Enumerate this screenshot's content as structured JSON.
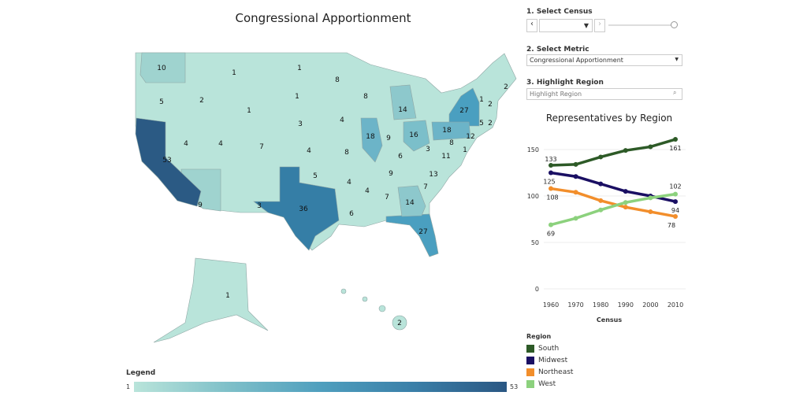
{
  "title": "Congressional Apportionment",
  "controls": {
    "census_label": "1. Select Census",
    "census_value": "",
    "metric_label": "2. Select Metric",
    "metric_value": "Congressional Apportionment",
    "highlight_label": "3. Highlight Region",
    "highlight_placeholder": "Highlight Region"
  },
  "map": {
    "states": [
      {
        "s": "WA",
        "v": "10"
      },
      {
        "s": "OR",
        "v": "5"
      },
      {
        "s": "CA",
        "v": "53"
      },
      {
        "s": "NV",
        "v": "4"
      },
      {
        "s": "ID",
        "v": "2"
      },
      {
        "s": "MT",
        "v": "1"
      },
      {
        "s": "WY",
        "v": "1"
      },
      {
        "s": "UT",
        "v": "4"
      },
      {
        "s": "AZ",
        "v": "9"
      },
      {
        "s": "CO",
        "v": "7"
      },
      {
        "s": "NM",
        "v": "3"
      },
      {
        "s": "ND",
        "v": "1"
      },
      {
        "s": "SD",
        "v": "1"
      },
      {
        "s": "NE",
        "v": "3"
      },
      {
        "s": "KS",
        "v": "4"
      },
      {
        "s": "OK",
        "v": "5"
      },
      {
        "s": "TX",
        "v": "36"
      },
      {
        "s": "MN",
        "v": "8"
      },
      {
        "s": "IA",
        "v": "4"
      },
      {
        "s": "MO",
        "v": "8"
      },
      {
        "s": "AR",
        "v": "4"
      },
      {
        "s": "LA",
        "v": "6"
      },
      {
        "s": "WI",
        "v": "8"
      },
      {
        "s": "IL",
        "v": "18"
      },
      {
        "s": "MI",
        "v": "14"
      },
      {
        "s": "IN",
        "v": "9"
      },
      {
        "s": "OH",
        "v": "16"
      },
      {
        "s": "KY",
        "v": "6"
      },
      {
        "s": "TN",
        "v": "9"
      },
      {
        "s": "MS",
        "v": "4"
      },
      {
        "s": "AL",
        "v": "7"
      },
      {
        "s": "GA",
        "v": "14"
      },
      {
        "s": "FL",
        "v": "27"
      },
      {
        "s": "SC",
        "v": "7"
      },
      {
        "s": "NC",
        "v": "13"
      },
      {
        "s": "VA",
        "v": "11"
      },
      {
        "s": "WV",
        "v": "3"
      },
      {
        "s": "PA",
        "v": "18"
      },
      {
        "s": "NY",
        "v": "27"
      },
      {
        "s": "VT",
        "v": "1"
      },
      {
        "s": "NH",
        "v": "2"
      },
      {
        "s": "ME",
        "v": "2"
      },
      {
        "s": "CT",
        "v": "5"
      },
      {
        "s": "RI",
        "v": "2"
      },
      {
        "s": "NJ",
        "v": "12"
      },
      {
        "s": "MD",
        "v": "8"
      },
      {
        "s": "DE",
        "v": "1"
      },
      {
        "s": "AK",
        "v": "1"
      },
      {
        "s": "HI",
        "v": "2"
      }
    ]
  },
  "legend": {
    "title": "Legend",
    "min": "1",
    "max": "53",
    "color_min": "#b9e4da",
    "color_max": "#2a5783"
  },
  "chart_data": {
    "type": "line",
    "title": "Representatives by Region",
    "xlabel": "Census",
    "ylabel": "",
    "x": [
      1960,
      1970,
      1980,
      1990,
      2000,
      2010
    ],
    "x_tick_labels": [
      "1960",
      "1970",
      "1980",
      "1990",
      "2000",
      "2010"
    ],
    "y_ticks": [
      "0",
      "50",
      "100",
      "150"
    ],
    "ylim": [
      0,
      165
    ],
    "grid": true,
    "legend_title": "Region",
    "legend_position": "bottom",
    "series": [
      {
        "name": "South",
        "color": "#2d5a27",
        "values": [
          133,
          134,
          142,
          149,
          153,
          161
        ],
        "start_label": "133",
        "end_label": "161"
      },
      {
        "name": "Midwest",
        "color": "#1a0f63",
        "values": [
          125,
          121,
          113,
          105,
          100,
          94
        ],
        "start_label": "125",
        "end_label": "94"
      },
      {
        "name": "Northeast",
        "color": "#f28e2b",
        "values": [
          108,
          104,
          95,
          88,
          83,
          78
        ],
        "start_label": "108",
        "end_label": "78"
      },
      {
        "name": "West",
        "color": "#8cd17d",
        "values": [
          69,
          76,
          85,
          93,
          98,
          102
        ],
        "start_label": "69",
        "end_label": "102"
      }
    ]
  }
}
